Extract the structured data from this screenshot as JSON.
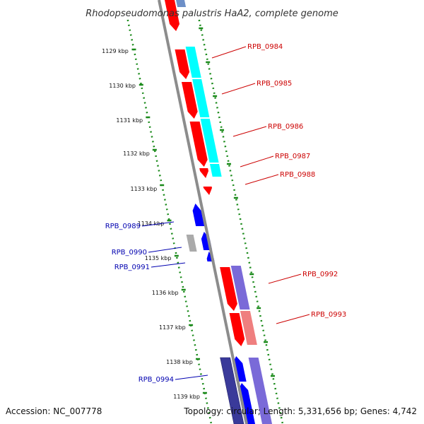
{
  "title": "Rhodopseudomonas palustris HaA2, complete genome",
  "footer": {
    "accession": "Accession: NC_007778",
    "summary": "Topology: circular; Length: 5,331,656 bp; Genes: 4,742"
  },
  "colors": {
    "backbone": "#8c8c8c",
    "ticks": "#1a8a1a",
    "forward_label": "#cc0000",
    "reverse_label": "#0000b0",
    "forward_gene": "#ff0000",
    "reverse_gene": "#0000ff",
    "cog_cyan": "#00ffff",
    "cog_purple": "#7a6ad8",
    "cog_pink": "#ef7f7f",
    "cog_grey": "#aaaaaa"
  },
  "kbp_labels": [
    "1129 kbp",
    "1130 kbp",
    "1131 kbp",
    "1132 kbp",
    "1133 kbp",
    "1134 kbp",
    "1135 kbp",
    "1136 kbp",
    "1137 kbp",
    "1138 kbp",
    "1139 kbp"
  ],
  "gene_labels": [
    {
      "text": "RPB_0984",
      "strand": "forward"
    },
    {
      "text": "RPB_0985",
      "strand": "forward"
    },
    {
      "text": "RPB_0986",
      "strand": "forward"
    },
    {
      "text": "RPB_0987",
      "strand": "forward"
    },
    {
      "text": "RPB_0988",
      "strand": "forward"
    },
    {
      "text": "RPB_0989",
      "strand": "reverse"
    },
    {
      "text": "RPB_0990",
      "strand": "reverse"
    },
    {
      "text": "RPB_0991",
      "strand": "reverse"
    },
    {
      "text": "RPB_0992",
      "strand": "forward"
    },
    {
      "text": "RPB_0993",
      "strand": "forward"
    },
    {
      "text": "RPB_0994",
      "strand": "reverse"
    }
  ]
}
